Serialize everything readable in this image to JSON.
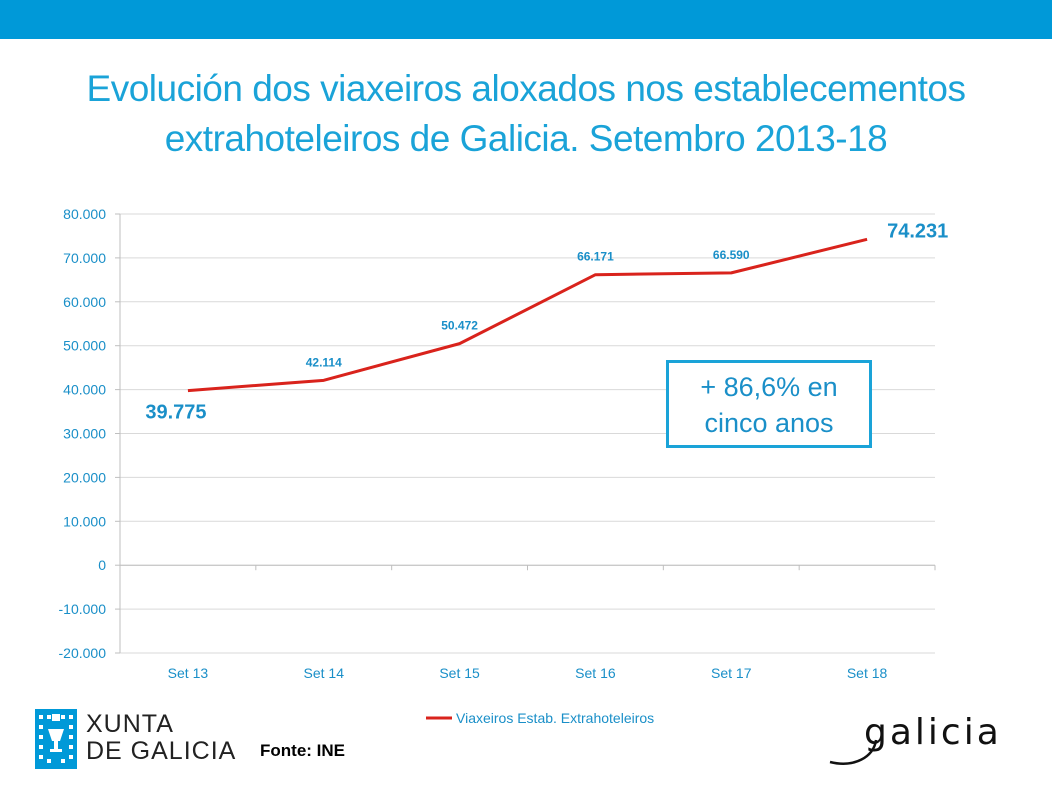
{
  "header": {
    "title_line1": "Evolución dos viaxeiros aloxados nos establecementos",
    "title_line2": "extrahoteleiros de Galicia. Setembro 2013-18"
  },
  "chart_data": {
    "type": "line",
    "categories": [
      "Set 13",
      "Set 14",
      "Set 15",
      "Set 16",
      "Set 17",
      "Set 18"
    ],
    "series": [
      {
        "name": "Viaxeiros Estab. Extrahoteleiros",
        "values": [
          39775,
          42114,
          50472,
          66171,
          66590,
          74231
        ],
        "color": "#d9231c"
      }
    ],
    "data_labels": [
      "39.775",
      "42.114",
      "50.472",
      "66.171",
      "66.590",
      "74.231"
    ],
    "yticks": [
      "80.000",
      "70.000",
      "60.000",
      "50.000",
      "40.000",
      "30.000",
      "20.000",
      "10.000",
      "0",
      "-10.000",
      "-20.000"
    ],
    "ylim": [
      -20000,
      80000
    ],
    "ystep": 10000,
    "grid": true,
    "legend": "bottom"
  },
  "callout": {
    "line1": "+ 86,6% en",
    "line2": "cinco anos"
  },
  "footer": {
    "xunta_line1": "XUNTA",
    "xunta_line2": "DE GALICIA",
    "source": "Fonte: INE",
    "galicia_logo_text": "galicia"
  },
  "colors": {
    "top_bar": "#0099d8",
    "title": "#1aa3d8",
    "axis_text": "#1a8fc8",
    "line": "#d9231c",
    "grid": "#d9d9d9"
  }
}
